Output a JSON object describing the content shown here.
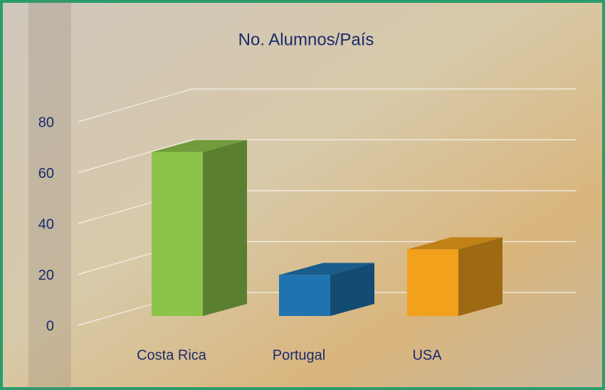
{
  "chart_data": {
    "type": "bar3d",
    "title": "No. Alumnos/País",
    "categories": [
      "Costa Rica",
      "Portugal",
      "USA"
    ],
    "values": [
      64,
      16,
      26
    ],
    "colors": [
      "#8cc34a",
      "#1f74b0",
      "#f2a11c"
    ],
    "ylim": [
      0,
      80
    ],
    "yticks": [
      0,
      20,
      40,
      60,
      80
    ],
    "grid": true
  }
}
